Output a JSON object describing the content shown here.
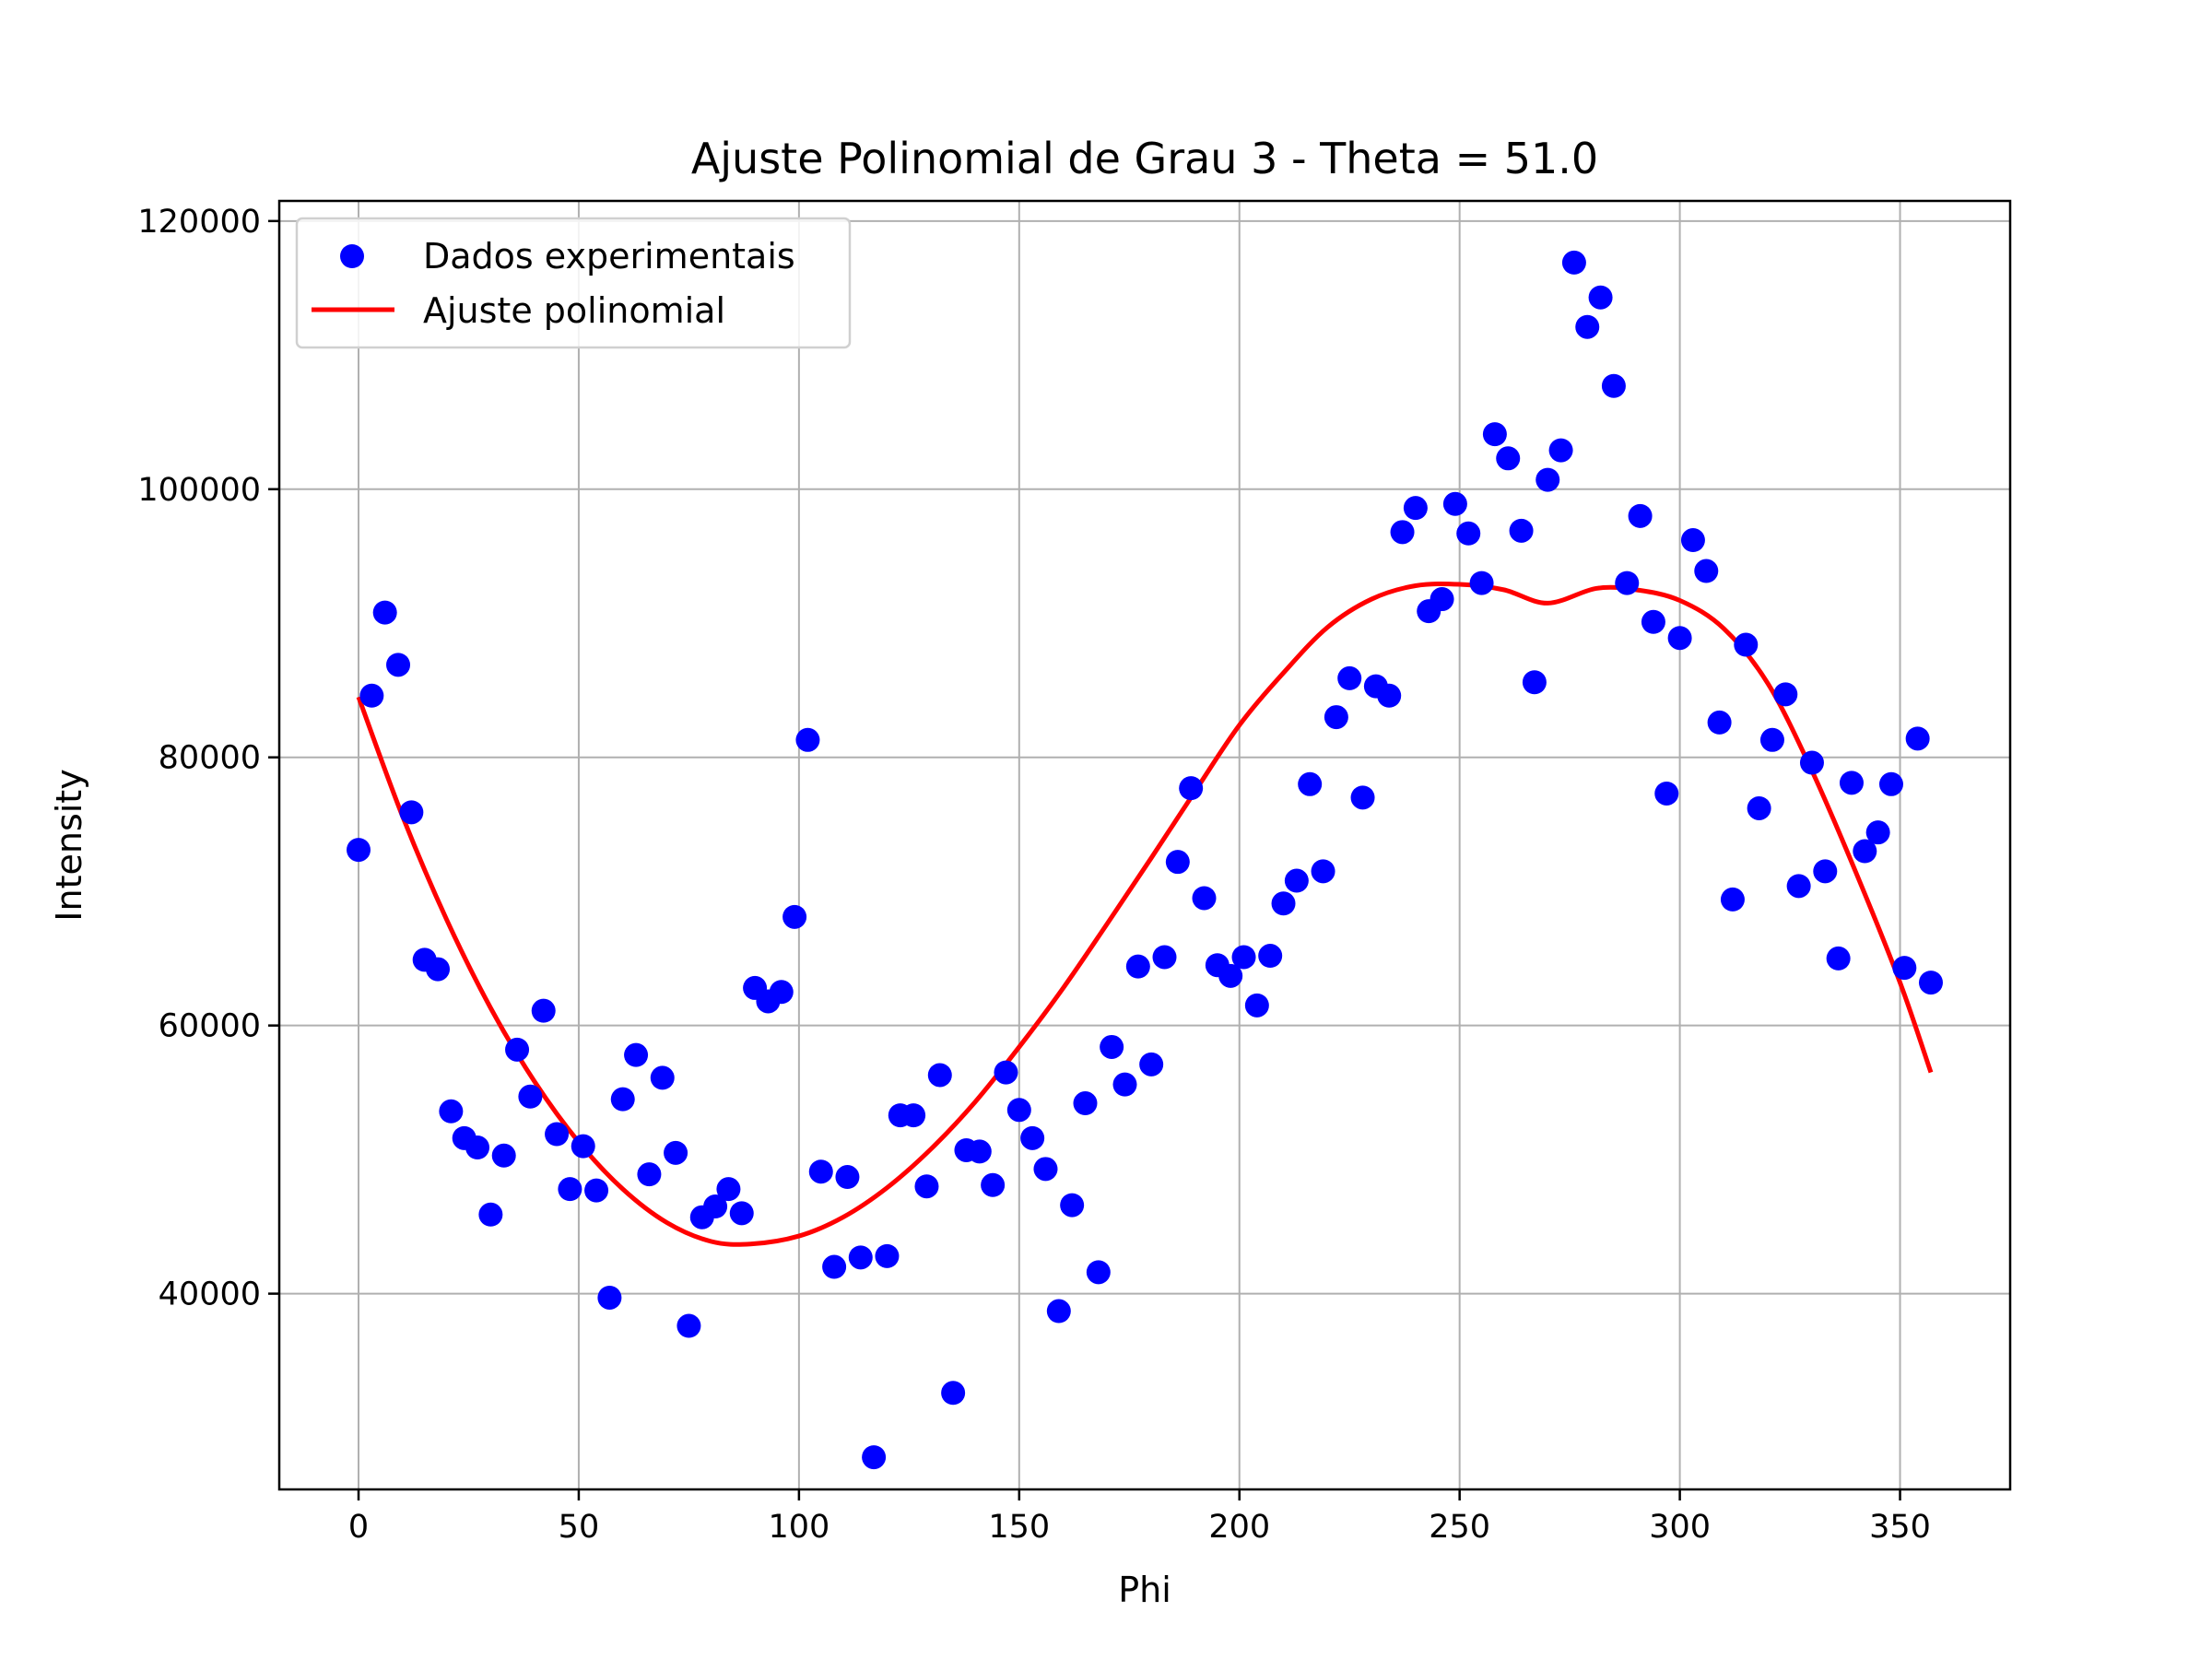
{
  "chart_data": {
    "type": "scatter",
    "title": "Ajuste Polinomial de Grau 3 - Theta = 51.0",
    "xlabel": "Phi",
    "ylabel": "Intensity",
    "xlim": [
      -18,
      375
    ],
    "ylim": [
      25400,
      121500
    ],
    "xticks": [
      0,
      50,
      100,
      150,
      200,
      250,
      300,
      350
    ],
    "yticks": [
      40000,
      60000,
      80000,
      100000,
      120000
    ],
    "grid": true,
    "legend_position": "top-left",
    "series": [
      {
        "name": "Dados experimentais",
        "kind": "scatter",
        "color": "#0000ff",
        "x": [
          0,
          3,
          6,
          9,
          12,
          15,
          18,
          21,
          24,
          27,
          30,
          33,
          36,
          39,
          42,
          45,
          48,
          51,
          54,
          57,
          60,
          63,
          66,
          69,
          72,
          75,
          78,
          81,
          84,
          87,
          90,
          93,
          96,
          99,
          102,
          105,
          108,
          111,
          114,
          117,
          120,
          123,
          126,
          129,
          132,
          135,
          138,
          141,
          144,
          147,
          150,
          153,
          156,
          159,
          162,
          165,
          168,
          171,
          174,
          177,
          180,
          183,
          186,
          189,
          192,
          195,
          198,
          201,
          204,
          207,
          210,
          213,
          216,
          219,
          222,
          225,
          228,
          231,
          234,
          237,
          240,
          243,
          246,
          249,
          252,
          255,
          258,
          261,
          264,
          267,
          270,
          273,
          276,
          279,
          282,
          285,
          288,
          291,
          294,
          297,
          300,
          303,
          306,
          309,
          312,
          315,
          318,
          321,
          324,
          327,
          330,
          333,
          336,
          339,
          342,
          345,
          348,
          351,
          354,
          357
        ],
        "y": [
          73100,
          84600,
          90800,
          86900,
          75900,
          64900,
          64200,
          53600,
          51600,
          50900,
          45900,
          50300,
          58200,
          54700,
          61100,
          51900,
          47800,
          51000,
          47700,
          39700,
          54500,
          57800,
          48900,
          56100,
          50500,
          37600,
          45700,
          46500,
          47800,
          46000,
          62800,
          61800,
          62500,
          68100,
          81300,
          49100,
          42000,
          48700,
          42700,
          27800,
          42800,
          53300,
          53300,
          48000,
          56300,
          32600,
          50700,
          50600,
          48100,
          56500,
          53700,
          51600,
          49300,
          38700,
          46600,
          54200,
          41600,
          58400,
          55600,
          64400,
          57100,
          65100,
          72200,
          77700,
          69500,
          64500,
          63700,
          65100,
          61500,
          65200,
          69100,
          70800,
          78000,
          71500,
          83000,
          85900,
          77000,
          85300,
          84600,
          96800,
          98600,
          90900,
          91800,
          98900,
          96700,
          93000,
          104100,
          102300,
          96900,
          85600,
          100700,
          102900,
          116900,
          112100,
          114300,
          107700,
          93000,
          98000,
          90100,
          77300,
          88900,
          96200,
          93900,
          82600,
          69400,
          88400,
          76200,
          81300,
          84700,
          70400,
          79600,
          71500,
          65000,
          78100,
          73000,
          74400,
          78000,
          64300,
          81400,
          63200
        ]
      },
      {
        "name": "Ajuste polinomial",
        "kind": "line",
        "color": "#ff0000",
        "x": [
          0,
          10,
          20,
          30,
          40,
          50,
          60,
          70,
          80,
          89,
          100,
          110,
          120,
          130,
          140,
          150,
          160,
          170,
          180,
          190,
          200,
          210,
          220,
          230,
          240,
          250,
          260,
          270,
          281,
          290,
          300,
          310,
          320,
          330,
          340,
          350,
          357
        ],
        "y": [
          84500,
          75600,
          67900,
          61300,
          55800,
          51300,
          47800,
          45300,
          43900,
          43700,
          44300,
          45700,
          47900,
          50800,
          54300,
          58400,
          62800,
          67600,
          72500,
          77500,
          82400,
          86300,
          89700,
          91800,
          92800,
          92900,
          92500,
          91500,
          92600,
          92500,
          91700,
          89600,
          85500,
          79000,
          71400,
          63200,
          56500
        ]
      }
    ]
  }
}
